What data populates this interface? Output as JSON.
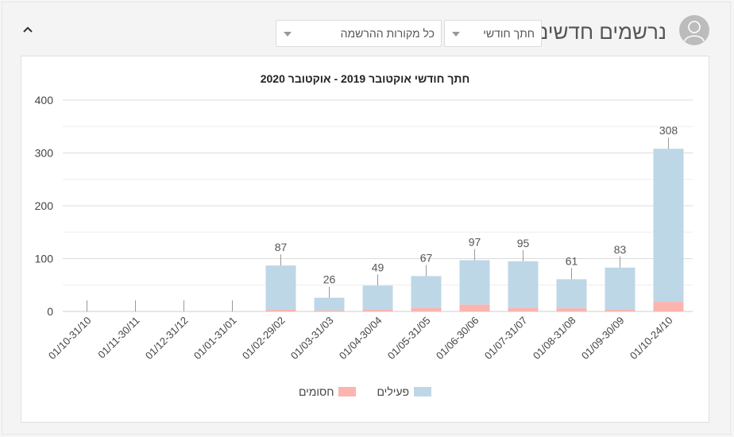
{
  "header": {
    "title": "נרשמים חדשים",
    "period_select": {
      "value": "חתך חודשי"
    },
    "source_select": {
      "value": "כל מקורות ההרשמה"
    },
    "icons": {
      "avatar": "user-avatar-icon",
      "collapse": "chevron-up-icon",
      "dropdown": "caret-down-icon"
    }
  },
  "colors": {
    "active": "#bdd7e7",
    "blocked": "#fbb4ae",
    "axis": "#cfcfcf",
    "grid": "#e4e4e4"
  },
  "chart_data": {
    "type": "bar",
    "stacked": true,
    "title": "חתך חודשי אוקטובר 2019 - אוקטובר 2020",
    "xlabel": "",
    "ylabel": "",
    "ylim": [
      0,
      400
    ],
    "yticks": [
      0,
      100,
      200,
      300,
      400
    ],
    "grid": true,
    "legend_position": "bottom",
    "categories": [
      "01/10-31/10",
      "01/11-30/11",
      "01/12-31/12",
      "01/01-31/01",
      "01/02-29/02",
      "01/03-31/03",
      "01/04-30/04",
      "01/05-31/05",
      "01/06-30/06",
      "01/07-31/07",
      "01/08-31/08",
      "01/09-30/09",
      "01/10-24/10"
    ],
    "series": [
      {
        "name": "פעילים",
        "values": [
          0,
          0,
          0,
          0,
          83,
          24,
          45,
          60,
          84,
          88,
          55,
          80,
          290
        ]
      },
      {
        "name": "חסומים",
        "values": [
          0,
          0,
          0,
          0,
          4,
          2,
          4,
          7,
          13,
          7,
          6,
          3,
          18
        ]
      }
    ],
    "totals": [
      "",
      "",
      "",
      "",
      "87",
      "26",
      "49",
      "67",
      "97",
      "95",
      "61",
      "83",
      "308"
    ],
    "legend_order": [
      "פעילים",
      "חסומים"
    ]
  }
}
